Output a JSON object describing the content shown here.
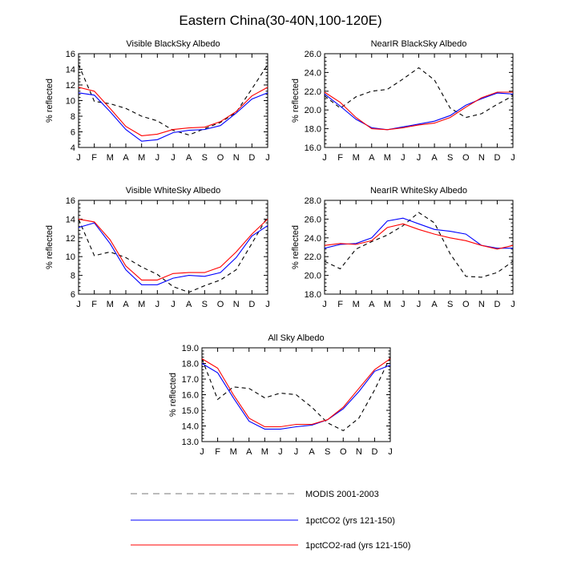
{
  "title": "Eastern China(30-40N,100-120E)",
  "legend": [
    {
      "label": "MODIS 2001-2003",
      "color": "#000000",
      "dash": "8,6"
    },
    {
      "label": "1pctCO2 (yrs 121-150)",
      "color": "#0000ff",
      "dash": ""
    },
    {
      "label": "1pctCO2-rad (yrs 121-150)",
      "color": "#ff0000",
      "dash": ""
    }
  ],
  "chart_data": [
    {
      "type": "line",
      "title": "Visible BlackSky Albedo",
      "ylabel": "% reflected",
      "categories": [
        "J",
        "F",
        "M",
        "A",
        "M",
        "J",
        "J",
        "A",
        "S",
        "O",
        "N",
        "D",
        "J"
      ],
      "ylim": [
        4,
        16
      ],
      "yticks": [
        4,
        6,
        8,
        10,
        12,
        14,
        16
      ],
      "ytick_labels": [
        "4",
        "6",
        "8",
        "10",
        "12",
        "14",
        "16"
      ],
      "series": [
        {
          "name": "MODIS 2001-2003",
          "values": [
            14.6,
            9.9,
            9.6,
            9.0,
            8.0,
            7.4,
            6.2,
            5.6,
            6.4,
            7.2,
            8.5,
            11.5,
            14.6
          ]
        },
        {
          "name": "1pctCO2 (yrs 121-150)",
          "values": [
            11.0,
            10.7,
            8.6,
            6.3,
            4.8,
            5.0,
            5.9,
            6.2,
            6.3,
            6.8,
            8.4,
            10.2,
            11.0
          ]
        },
        {
          "name": "1pctCO2-rad (yrs 121-150)",
          "values": [
            11.7,
            11.2,
            9.0,
            6.7,
            5.5,
            5.7,
            6.3,
            6.5,
            6.6,
            7.3,
            8.6,
            10.6,
            11.7
          ]
        }
      ]
    },
    {
      "type": "line",
      "title": "NearIR BlackSky Albedo",
      "ylabel": "% reflected",
      "categories": [
        "J",
        "F",
        "M",
        "A",
        "M",
        "J",
        "J",
        "A",
        "S",
        "O",
        "N",
        "D",
        "J"
      ],
      "ylim": [
        16,
        26
      ],
      "yticks": [
        16,
        18,
        20,
        22,
        24,
        26
      ],
      "ytick_labels": [
        "16.0",
        "18.0",
        "20.0",
        "22.0",
        "24.0",
        "26.0"
      ],
      "series": [
        {
          "name": "MODIS 2001-2003",
          "values": [
            21.5,
            20.2,
            21.4,
            22.0,
            22.2,
            23.3,
            24.5,
            23.2,
            20.2,
            19.2,
            19.6,
            20.6,
            21.5
          ]
        },
        {
          "name": "1pctCO2 (yrs 121-150)",
          "values": [
            21.7,
            20.4,
            19.0,
            18.1,
            17.9,
            18.2,
            18.5,
            18.8,
            19.4,
            20.5,
            21.2,
            21.8,
            21.7
          ]
        },
        {
          "name": "1pctCO2-rad (yrs 121-150)",
          "values": [
            21.9,
            20.8,
            19.2,
            18.0,
            17.9,
            18.1,
            18.4,
            18.6,
            19.2,
            20.3,
            21.3,
            21.9,
            21.9
          ]
        }
      ]
    },
    {
      "type": "line",
      "title": "Visible WhiteSky Albedo",
      "ylabel": "% reflected",
      "categories": [
        "J",
        "F",
        "M",
        "A",
        "M",
        "J",
        "J",
        "A",
        "S",
        "O",
        "N",
        "D",
        "J"
      ],
      "ylim": [
        6,
        16
      ],
      "yticks": [
        6,
        8,
        10,
        12,
        14,
        16
      ],
      "ytick_labels": [
        "6",
        "8",
        "10",
        "12",
        "14",
        "16"
      ],
      "series": [
        {
          "name": "MODIS 2001-2003",
          "values": [
            14.0,
            10.1,
            10.5,
            9.9,
            8.9,
            8.1,
            6.8,
            6.2,
            6.9,
            7.5,
            8.6,
            11.4,
            14.3
          ]
        },
        {
          "name": "1pctCO2 (yrs 121-150)",
          "values": [
            13.1,
            13.6,
            11.4,
            8.6,
            7.0,
            7.0,
            7.7,
            8.0,
            7.9,
            8.3,
            9.9,
            12.2,
            13.3
          ]
        },
        {
          "name": "1pctCO2-rad (yrs 121-150)",
          "values": [
            14.0,
            13.7,
            11.8,
            9.0,
            7.5,
            7.5,
            8.2,
            8.3,
            8.3,
            8.9,
            10.5,
            12.4,
            14.0
          ]
        }
      ]
    },
    {
      "type": "line",
      "title": "NearIR WhiteSky Albedo",
      "ylabel": "% reflected",
      "categories": [
        "J",
        "F",
        "M",
        "A",
        "M",
        "J",
        "J",
        "A",
        "S",
        "O",
        "N",
        "D",
        "J"
      ],
      "ylim": [
        18,
        28
      ],
      "yticks": [
        18,
        20,
        22,
        24,
        26,
        28
      ],
      "ytick_labels": [
        "18.0",
        "20.0",
        "22.0",
        "24.0",
        "26.0",
        "28.0"
      ],
      "series": [
        {
          "name": "MODIS 2001-2003",
          "values": [
            21.5,
            20.7,
            22.8,
            23.6,
            24.3,
            25.3,
            26.7,
            25.6,
            22.3,
            19.9,
            19.8,
            20.3,
            21.5
          ]
        },
        {
          "name": "1pctCO2 (yrs 121-150)",
          "values": [
            22.9,
            23.3,
            23.4,
            24.0,
            25.8,
            26.1,
            25.5,
            24.9,
            24.7,
            24.4,
            23.2,
            22.9,
            22.9
          ]
        },
        {
          "name": "1pctCO2-rad (yrs 121-150)",
          "values": [
            23.2,
            23.4,
            23.3,
            23.7,
            25.1,
            25.5,
            24.9,
            24.4,
            24.0,
            23.7,
            23.2,
            22.8,
            23.2
          ]
        }
      ]
    },
    {
      "type": "line",
      "title": "All Sky Albedo",
      "ylabel": "% reflected",
      "categories": [
        "J",
        "F",
        "M",
        "A",
        "M",
        "J",
        "J",
        "A",
        "S",
        "O",
        "N",
        "D",
        "J"
      ],
      "ylim": [
        13,
        19
      ],
      "yticks": [
        13,
        14,
        15,
        16,
        17,
        18,
        19
      ],
      "ytick_labels": [
        "13.0",
        "14.0",
        "15.0",
        "16.0",
        "17.0",
        "18.0",
        "19.0"
      ],
      "series": [
        {
          "name": "MODIS 2001-2003",
          "values": [
            18.3,
            15.7,
            16.5,
            16.4,
            15.8,
            16.1,
            16.0,
            15.2,
            14.2,
            13.7,
            14.5,
            16.3,
            18.4
          ]
        },
        {
          "name": "1pctCO2 (yrs 121-150)",
          "values": [
            18.0,
            17.4,
            15.8,
            14.3,
            13.8,
            13.8,
            13.95,
            14.05,
            14.4,
            15.1,
            16.2,
            17.5,
            17.9
          ]
        },
        {
          "name": "1pctCO2-rad (yrs 121-150)",
          "values": [
            18.3,
            17.7,
            16.0,
            14.5,
            13.95,
            13.95,
            14.1,
            14.1,
            14.4,
            15.2,
            16.4,
            17.6,
            18.3
          ]
        }
      ]
    }
  ]
}
